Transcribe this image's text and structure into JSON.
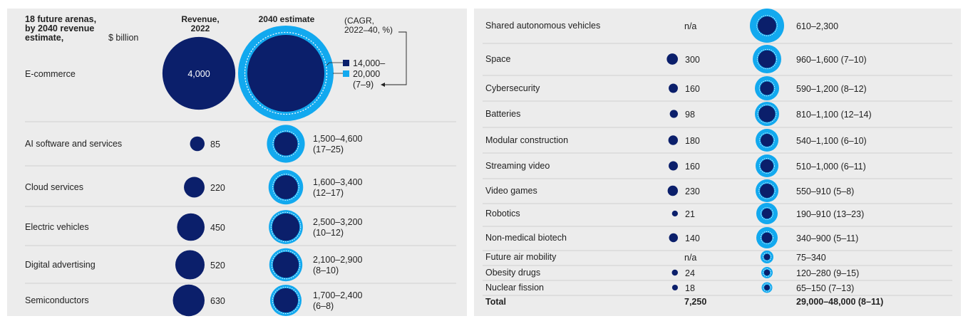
{
  "colors": {
    "panel_bg": "#ececec",
    "dark_navy": "#0b1f6b",
    "light_blue": "#12a9ef",
    "divider": "#cfcfcf",
    "text": "#222222"
  },
  "header": {
    "title_lines": [
      "18 future arenas,",
      "by 2040 revenue",
      "estimate,"
    ],
    "title_unit": "$ billion",
    "revenue_lines": [
      "Revenue,",
      "2022"
    ],
    "estimate_label": "2040 estimate",
    "cagr_lines": [
      "(CAGR,",
      "2022–40, %)"
    ]
  },
  "legend": {
    "low_label": "14,000–",
    "high_label": "20,000",
    "cagr_label": "(7–9)"
  },
  "chart_data": {
    "type": "bubble-table",
    "title": "18 future arenas, by 2040 revenue estimate, $ billion",
    "columns": [
      "Revenue, 2022",
      "2040 estimate",
      "(CAGR, 2022–40, %)"
    ],
    "rows": [
      {
        "name": "E-commerce",
        "rev2022": 4000,
        "rev_label": "4,000",
        "est_low": 14000,
        "est_high": 20000,
        "est_label": "14,000–20,000",
        "cagr": "(7–9)"
      },
      {
        "name": "AI software and services",
        "rev2022": 85,
        "rev_label": "85",
        "est_low": 1500,
        "est_high": 4600,
        "est_label": "1,500–4,600",
        "cagr": "(17–25)"
      },
      {
        "name": "Cloud services",
        "rev2022": 220,
        "rev_label": "220",
        "est_low": 1600,
        "est_high": 3400,
        "est_label": "1,600–3,400",
        "cagr": "(12–17)"
      },
      {
        "name": "Electric vehicles",
        "rev2022": 450,
        "rev_label": "450",
        "est_low": 2500,
        "est_high": 3200,
        "est_label": "2,500–3,200",
        "cagr": "(10–12)"
      },
      {
        "name": "Digital advertising",
        "rev2022": 520,
        "rev_label": "520",
        "est_low": 2100,
        "est_high": 2900,
        "est_label": "2,100–2,900",
        "cagr": "(8–10)"
      },
      {
        "name": "Semiconductors",
        "rev2022": 630,
        "rev_label": "630",
        "est_low": 1700,
        "est_high": 2400,
        "est_label": "1,700–2,400",
        "cagr": "(6–8)"
      },
      {
        "name": "Shared autonomous vehicles",
        "rev2022": null,
        "rev_label": "n/a",
        "est_low": 610,
        "est_high": 2300,
        "est_label": "610–2,300",
        "cagr": ""
      },
      {
        "name": "Space",
        "rev2022": 300,
        "rev_label": "300",
        "est_low": 960,
        "est_high": 1600,
        "est_label": "960–1,600",
        "cagr": "(7–10)"
      },
      {
        "name": "Cybersecurity",
        "rev2022": 160,
        "rev_label": "160",
        "est_low": 590,
        "est_high": 1200,
        "est_label": "590–1,200",
        "cagr": "(8–12)"
      },
      {
        "name": "Batteries",
        "rev2022": 98,
        "rev_label": "98",
        "est_low": 810,
        "est_high": 1100,
        "est_label": "810–1,100",
        "cagr": "(12–14)"
      },
      {
        "name": "Modular construction",
        "rev2022": 180,
        "rev_label": "180",
        "est_low": 540,
        "est_high": 1100,
        "est_label": "540–1,100",
        "cagr": "(6–10)"
      },
      {
        "name": "Streaming video",
        "rev2022": 160,
        "rev_label": "160",
        "est_low": 510,
        "est_high": 1000,
        "est_label": "510–1,000",
        "cagr": "(6–11)"
      },
      {
        "name": "Video games",
        "rev2022": 230,
        "rev_label": "230",
        "est_low": 550,
        "est_high": 910,
        "est_label": "550–910",
        "cagr": "(5–8)"
      },
      {
        "name": "Robotics",
        "rev2022": 21,
        "rev_label": "21",
        "est_low": 190,
        "est_high": 910,
        "est_label": "190–910",
        "cagr": "(13–23)"
      },
      {
        "name": "Non-medical biotech",
        "rev2022": 140,
        "rev_label": "140",
        "est_low": 340,
        "est_high": 900,
        "est_label": "340–900",
        "cagr": "(5–11)"
      },
      {
        "name": "Future air mobility",
        "rev2022": null,
        "rev_label": "n/a",
        "est_low": 75,
        "est_high": 340,
        "est_label": "75–340",
        "cagr": ""
      },
      {
        "name": "Obesity drugs",
        "rev2022": 24,
        "rev_label": "24",
        "est_low": 120,
        "est_high": 280,
        "est_label": "120–280",
        "cagr": "(9–15)"
      },
      {
        "name": "Nuclear fission",
        "rev2022": 18,
        "rev_label": "18",
        "est_low": 65,
        "est_high": 150,
        "est_label": "65–150",
        "cagr": "(7–13)"
      }
    ],
    "total": {
      "name": "Total",
      "rev_label": "7,250",
      "est_label": "29,000–48,000",
      "cagr": "(8–11)"
    }
  }
}
